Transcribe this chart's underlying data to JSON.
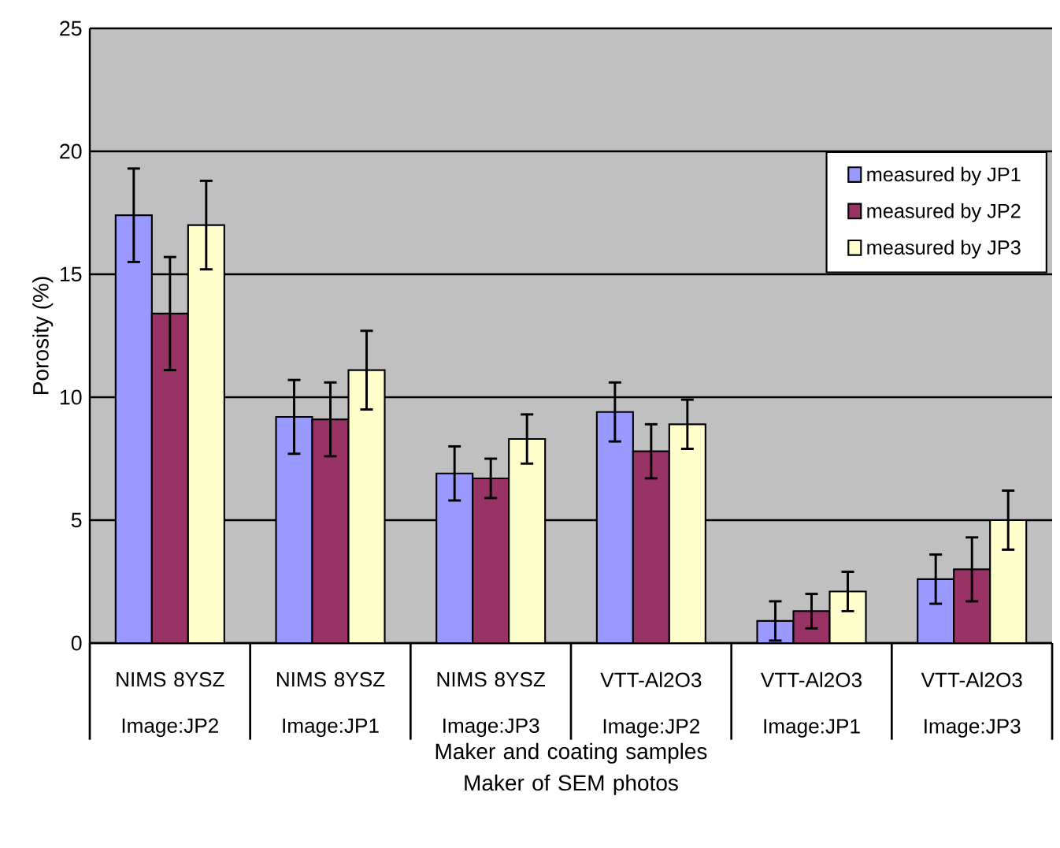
{
  "chart_data": {
    "type": "bar",
    "categories": [
      "NIMS 8YSZ Image:JP2",
      "NIMS 8YSZ Image:JP1",
      "NIMS 8YSZ Image:JP3",
      "VTT-Al2O3 Image:JP2",
      "VTT-Al2O3 Image:JP1",
      "VTT-Al2O3 Image:JP3"
    ],
    "series": [
      {
        "name": "measured by  JP1",
        "color": "#9999ff",
        "values": [
          17.4,
          9.2,
          6.9,
          9.4,
          0.9,
          2.6
        ],
        "errors": [
          1.9,
          1.5,
          1.1,
          1.2,
          0.8,
          1.0
        ]
      },
      {
        "name": "measured by  JP2",
        "color": "#993366",
        "values": [
          13.4,
          9.1,
          6.7,
          7.8,
          1.3,
          3.0
        ],
        "errors": [
          2.3,
          1.5,
          0.8,
          1.1,
          0.7,
          1.3
        ]
      },
      {
        "name": "measured by  JP3",
        "color": "#ffffcc",
        "values": [
          17.0,
          11.1,
          8.3,
          8.9,
          2.1,
          5.0
        ],
        "errors": [
          1.8,
          1.6,
          1.0,
          1.0,
          0.8,
          1.2
        ]
      }
    ],
    "ylim": [
      0,
      25
    ],
    "yticks": [
      0,
      5,
      10,
      15,
      20,
      25
    ],
    "ylabel": "Porosity (%)",
    "xlabel": "Maker and coating samples Maker of SEM photos",
    "grid": "y",
    "legend": "top right"
  }
}
